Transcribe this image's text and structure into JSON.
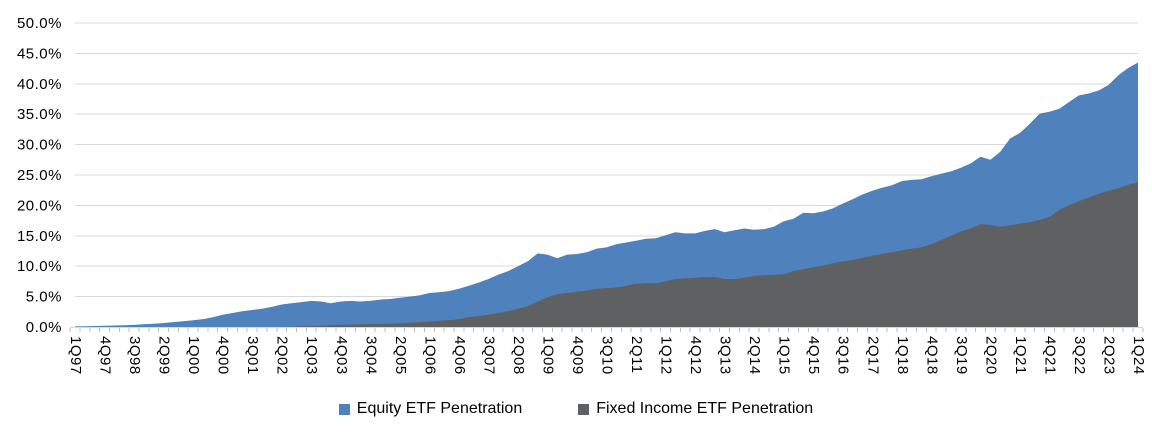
{
  "chart_data": {
    "type": "area",
    "title": "",
    "xlabel": "",
    "ylabel": "",
    "ylim": [
      0,
      50
    ],
    "y_step": 5,
    "grid": true,
    "overlap": true,
    "legend_position": "bottom",
    "y_tick_labels": [
      "0.0%",
      "5.0%",
      "10.0%",
      "15.0%",
      "20.0%",
      "25.0%",
      "30.0%",
      "35.0%",
      "40.0%",
      "45.0%",
      "50.0%"
    ],
    "x_tick_labels": [
      "1Q97",
      "4Q97",
      "3Q98",
      "2Q99",
      "1Q00",
      "4Q00",
      "3Q01",
      "2Q02",
      "1Q03",
      "4Q03",
      "3Q04",
      "2Q05",
      "1Q06",
      "4Q06",
      "3Q07",
      "2Q08",
      "1Q09",
      "4Q09",
      "3Q10",
      "2Q11",
      "1Q12",
      "4Q12",
      "3Q13",
      "2Q14",
      "1Q15",
      "4Q15",
      "3Q16",
      "2Q17",
      "1Q18",
      "4Q18",
      "3Q19",
      "2Q20",
      "1Q21",
      "4Q21",
      "3Q22",
      "2Q23",
      "1Q24"
    ],
    "x_categories": [
      "1Q97",
      "2Q97",
      "3Q97",
      "4Q97",
      "1Q98",
      "2Q98",
      "3Q98",
      "4Q98",
      "1Q99",
      "2Q99",
      "3Q99",
      "4Q99",
      "1Q00",
      "2Q00",
      "3Q00",
      "4Q00",
      "1Q01",
      "2Q01",
      "3Q01",
      "4Q01",
      "1Q02",
      "2Q02",
      "3Q02",
      "4Q02",
      "1Q03",
      "2Q03",
      "3Q03",
      "4Q03",
      "1Q04",
      "2Q04",
      "3Q04",
      "4Q04",
      "1Q05",
      "2Q05",
      "3Q05",
      "4Q05",
      "1Q06",
      "2Q06",
      "3Q06",
      "4Q06",
      "1Q07",
      "2Q07",
      "3Q07",
      "4Q07",
      "1Q08",
      "2Q08",
      "3Q08",
      "4Q08",
      "1Q09",
      "2Q09",
      "3Q09",
      "4Q09",
      "1Q10",
      "2Q10",
      "3Q10",
      "4Q10",
      "1Q11",
      "2Q11",
      "3Q11",
      "4Q11",
      "1Q12",
      "2Q12",
      "3Q12",
      "4Q12",
      "1Q13",
      "2Q13",
      "3Q13",
      "4Q13",
      "1Q14",
      "2Q14",
      "3Q14",
      "4Q14",
      "1Q15",
      "2Q15",
      "3Q15",
      "4Q15",
      "1Q16",
      "2Q16",
      "3Q16",
      "4Q16",
      "1Q17",
      "2Q17",
      "3Q17",
      "4Q17",
      "1Q18",
      "2Q18",
      "3Q18",
      "4Q18",
      "1Q19",
      "2Q19",
      "3Q19",
      "4Q19",
      "1Q20",
      "2Q20",
      "3Q20",
      "4Q20",
      "1Q21",
      "2Q21",
      "3Q21",
      "4Q21",
      "1Q22",
      "2Q22",
      "3Q22",
      "4Q22",
      "1Q23",
      "2Q23",
      "3Q23",
      "4Q23",
      "1Q24"
    ],
    "series": [
      {
        "name": "Equity ETF Penetration",
        "color": "#4F81BD",
        "values": [
          0.1,
          0.13,
          0.16,
          0.2,
          0.25,
          0.3,
          0.35,
          0.45,
          0.55,
          0.65,
          0.8,
          0.95,
          1.1,
          1.3,
          1.6,
          2.0,
          2.3,
          2.6,
          2.8,
          3.0,
          3.3,
          3.7,
          3.9,
          4.1,
          4.3,
          4.2,
          3.9,
          4.2,
          4.3,
          4.2,
          4.3,
          4.5,
          4.6,
          4.8,
          5.0,
          5.2,
          5.6,
          5.7,
          5.9,
          6.3,
          6.8,
          7.3,
          7.9,
          8.6,
          9.2,
          10.0,
          10.8,
          12.1,
          11.9,
          11.3,
          11.9,
          12.0,
          12.3,
          12.9,
          13.1,
          13.6,
          13.9,
          14.2,
          14.5,
          14.6,
          15.1,
          15.6,
          15.4,
          15.4,
          15.8,
          16.1,
          15.6,
          15.9,
          16.2,
          16.0,
          16.1,
          16.5,
          17.4,
          17.8,
          18.8,
          18.7,
          19.0,
          19.5,
          20.3,
          21.0,
          21.8,
          22.4,
          22.9,
          23.3,
          24.0,
          24.2,
          24.3,
          24.8,
          25.2,
          25.6,
          26.2,
          26.9,
          28.0,
          27.5,
          28.8,
          31.0,
          31.9,
          33.4,
          35.1,
          35.4,
          35.9,
          37.0,
          38.1,
          38.4,
          38.9,
          39.8,
          41.4,
          42.6,
          43.5
        ]
      },
      {
        "name": "Fixed Income ETF Penetration",
        "color": "#5F6062",
        "values": [
          0,
          0,
          0,
          0,
          0,
          0,
          0,
          0,
          0,
          0,
          0,
          0,
          0,
          0,
          0,
          0,
          0,
          0,
          0,
          0,
          0,
          0,
          0.05,
          0.1,
          0.15,
          0.2,
          0.3,
          0.35,
          0.4,
          0.45,
          0.5,
          0.5,
          0.55,
          0.6,
          0.7,
          0.8,
          0.9,
          1.0,
          1.1,
          1.3,
          1.6,
          1.8,
          2.0,
          2.3,
          2.6,
          3.0,
          3.4,
          4.2,
          4.9,
          5.4,
          5.6,
          5.8,
          6.0,
          6.3,
          6.4,
          6.5,
          6.8,
          7.1,
          7.2,
          7.2,
          7.5,
          7.9,
          8.0,
          8.1,
          8.2,
          8.2,
          7.9,
          7.9,
          8.1,
          8.4,
          8.5,
          8.6,
          8.7,
          9.2,
          9.5,
          9.8,
          10.1,
          10.5,
          10.8,
          11.0,
          11.4,
          11.7,
          12.0,
          12.3,
          12.6,
          12.9,
          13.1,
          13.6,
          14.3,
          15.0,
          15.7,
          16.2,
          16.9,
          16.8,
          16.5,
          16.7,
          17.0,
          17.2,
          17.6,
          18.1,
          19.3,
          20.0,
          20.7,
          21.3,
          21.9,
          22.4,
          22.8,
          23.4,
          23.8
        ]
      }
    ]
  },
  "colors": {
    "background": "#FFFFFF",
    "gridline": "#D9D9D9",
    "axis_line": "#D9D9D9",
    "tick": "#BFBFBF",
    "axis_text": "#000000"
  }
}
